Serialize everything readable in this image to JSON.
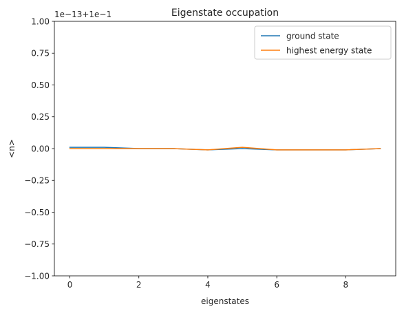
{
  "chart_data": {
    "type": "line",
    "title": "Eigenstate occupation",
    "xlabel": "eigenstates",
    "ylabel": "<n>",
    "offset_text": "1e−13+1e−1",
    "x": [
      0,
      1,
      2,
      3,
      4,
      5,
      6,
      7,
      8,
      9
    ],
    "xlim": [
      -0.45,
      9.45
    ],
    "ylim": [
      -1.0,
      1.0
    ],
    "xticks": [
      0,
      2,
      4,
      6,
      8
    ],
    "xtick_labels": [
      "0",
      "2",
      "4",
      "6",
      "8"
    ],
    "yticks": [
      -1.0,
      -0.75,
      -0.5,
      -0.25,
      0.0,
      0.25,
      0.5,
      0.75,
      1.0
    ],
    "ytick_labels": [
      "−1.00",
      "−0.75",
      "−0.50",
      "−0.25",
      "0.00",
      "0.25",
      "0.50",
      "0.75",
      "1.00"
    ],
    "series": [
      {
        "name": "ground state",
        "color": "#1f77b4",
        "values": [
          0.01,
          0.01,
          0.0,
          0.0,
          -0.01,
          0.0,
          -0.01,
          -0.01,
          -0.01,
          0.0
        ]
      },
      {
        "name": "highest energy state",
        "color": "#ff7f0e",
        "values": [
          0.0,
          0.0,
          0.0,
          0.0,
          -0.01,
          0.01,
          -0.01,
          -0.01,
          -0.01,
          0.0
        ]
      }
    ],
    "legend_position": "top-right",
    "grid": false
  }
}
